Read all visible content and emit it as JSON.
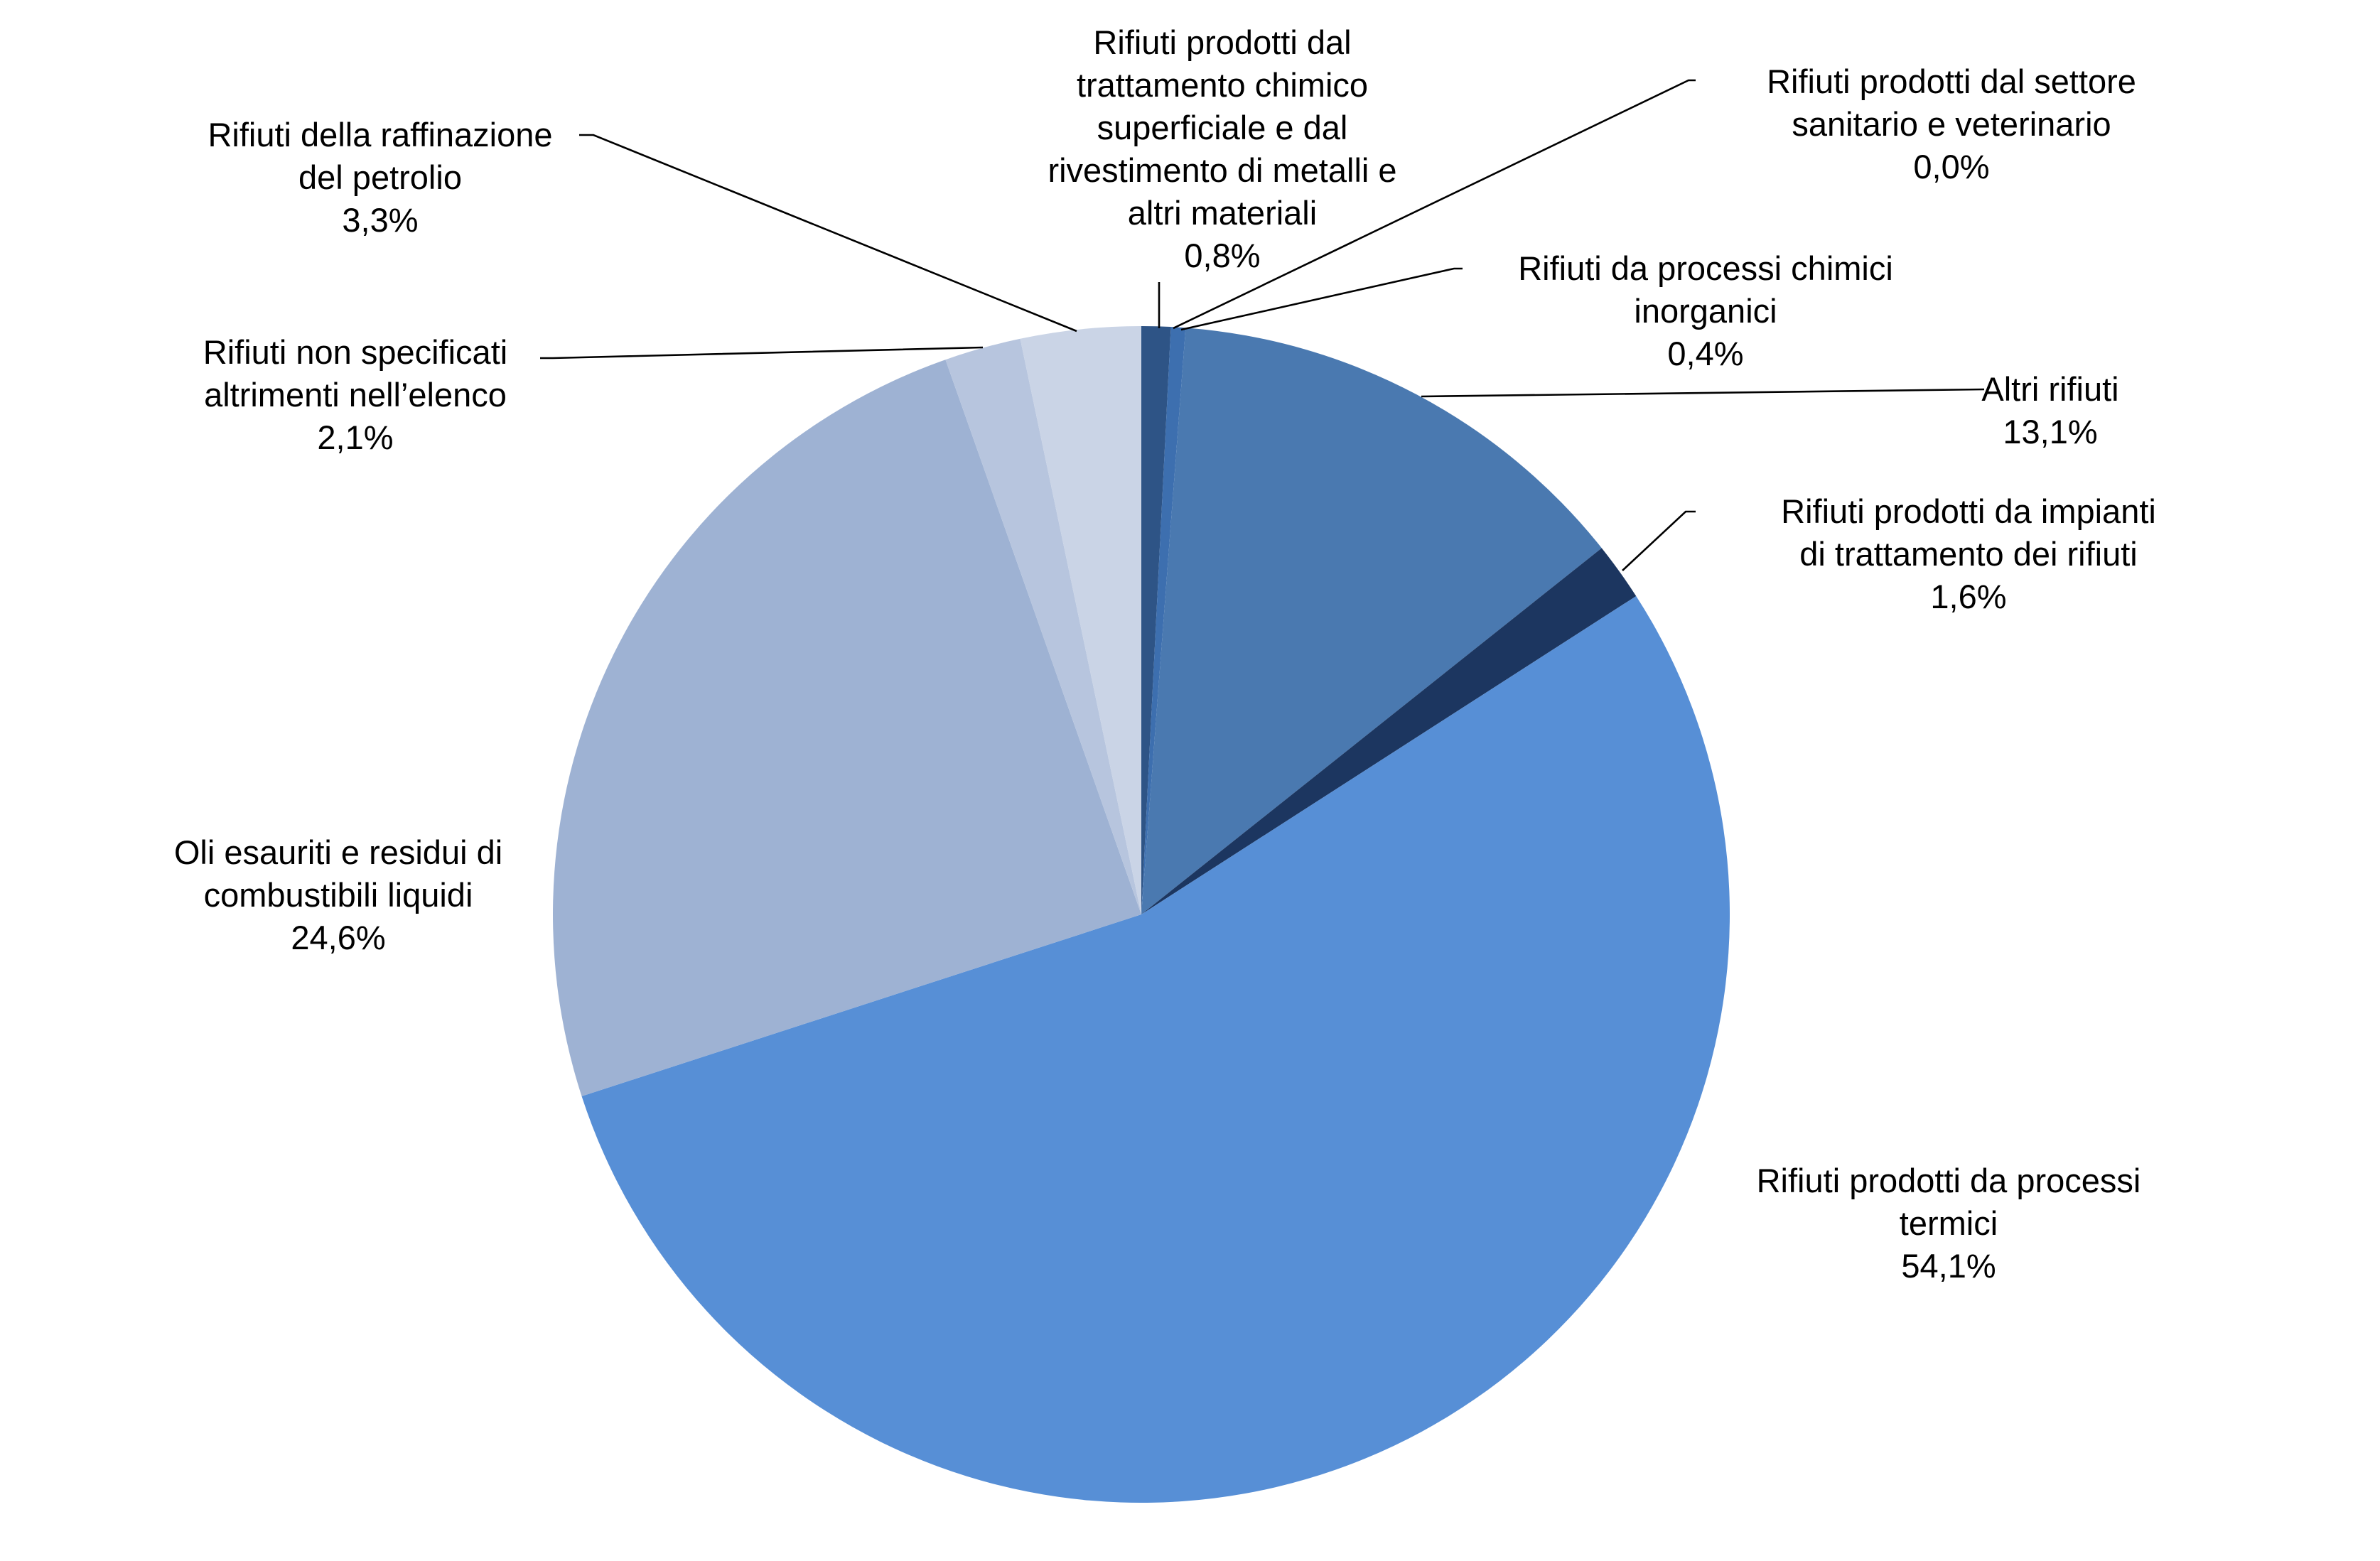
{
  "chart_data": {
    "type": "pie",
    "title": "",
    "start_angle_deg": 0,
    "direction": "clockwise",
    "slices": [
      {
        "label": [
          "Rifiuti prodotti dal",
          "trattamento chimico",
          "superficiale e dal",
          "rivestimento di metalli e",
          "altri materiali"
        ],
        "value_label": "0,8%",
        "value": 0.8,
        "color": "#2e5486"
      },
      {
        "label": [
          "Rifiuti prodotti dal settore",
          "sanitario e veterinario"
        ],
        "value_label": "0,0%",
        "value": 0.0,
        "color": "#3a6aa6"
      },
      {
        "label": [
          "Rifiuti da processi chimici",
          "inorganici"
        ],
        "value_label": "0,4%",
        "value": 0.4,
        "color": "#3d6faf"
      },
      {
        "label": [
          "Altri rifiuti"
        ],
        "value_label": "13,1%",
        "value": 13.1,
        "color": "#4a79b0"
      },
      {
        "label": [
          "Rifiuti prodotti da impianti",
          "di trattamento dei rifiuti"
        ],
        "value_label": "1,6%",
        "value": 1.6,
        "color": "#1c3660"
      },
      {
        "label": [
          "Rifiuti prodotti da processi",
          "termici"
        ],
        "value_label": "54,1%",
        "value": 54.1,
        "color": "#578fd6"
      },
      {
        "label": [
          "Oli esauriti e residui di",
          "combustibili liquidi"
        ],
        "value_label": "24,6%",
        "value": 24.6,
        "color": "#9eb2d3"
      },
      {
        "label": [
          "Rifiuti non specificati",
          "altrimenti nell’elenco"
        ],
        "value_label": "2,1%",
        "value": 2.1,
        "color": "#b7c5de"
      },
      {
        "label": [
          "Rifiuti della raffinazione",
          "del petrolio"
        ],
        "value_label": "3,3%",
        "value": 3.3,
        "color": "#cad4e6"
      }
    ]
  }
}
